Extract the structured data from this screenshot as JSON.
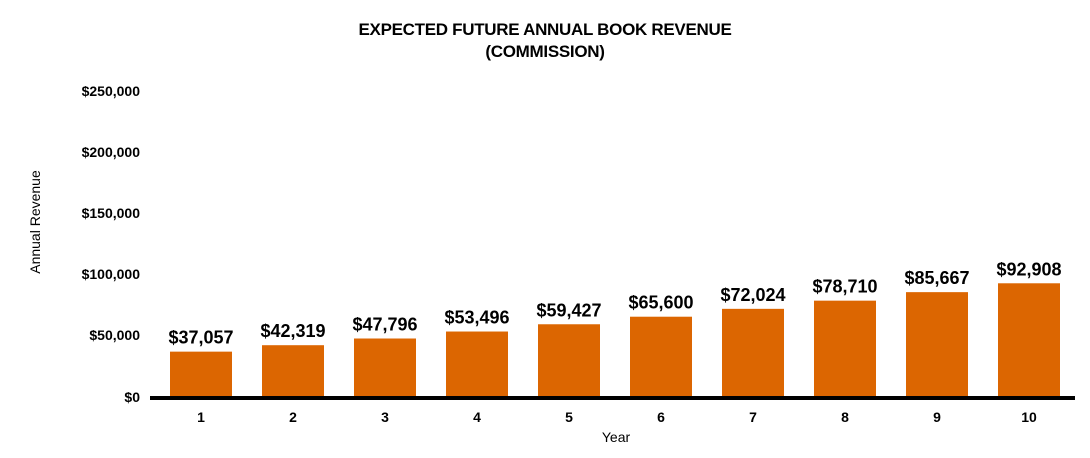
{
  "chart_data": {
    "type": "bar",
    "title_line1": "EXPECTED FUTURE ANNUAL  BOOK REVENUE",
    "title_line2": "(COMMISSION)",
    "xlabel": "Year",
    "ylabel": "Annual  Revenue",
    "categories": [
      "1",
      "2",
      "3",
      "4",
      "5",
      "6",
      "7",
      "8",
      "9",
      "10"
    ],
    "values": [
      37057,
      42319,
      47796,
      53496,
      59427,
      65600,
      72024,
      78710,
      85667,
      92908
    ],
    "data_labels": [
      "$37,057",
      "$42,319",
      "$47,796",
      "$53,496",
      "$59,427",
      "$65,600",
      "$72,024",
      "$78,710",
      "$85,667",
      "$92,908"
    ],
    "ylim": [
      0,
      250000
    ],
    "yticks": [
      "$250,000",
      "$200,000",
      "$150,000",
      "$100,000",
      "$50,000",
      "$0"
    ],
    "ytick_values": [
      250000,
      200000,
      150000,
      100000,
      50000,
      0
    ],
    "bar_color": "#DC6601",
    "grid": false,
    "legend": "none"
  }
}
